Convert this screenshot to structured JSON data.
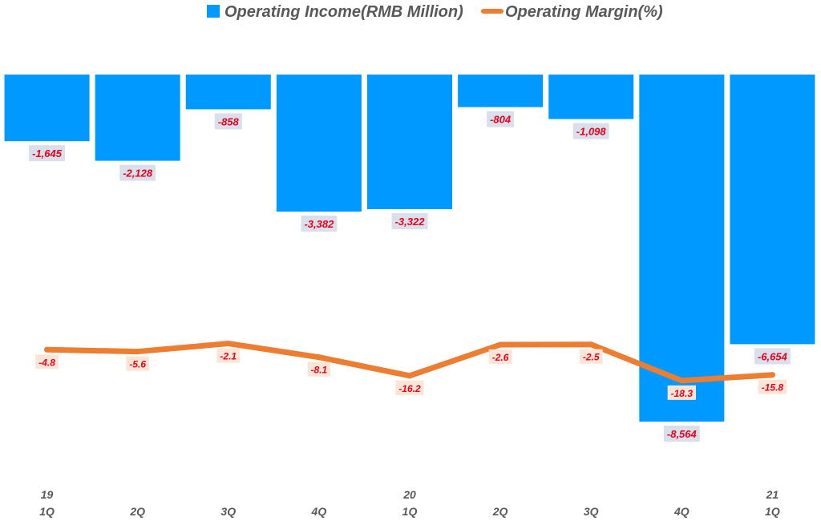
{
  "chart_data": {
    "type": "bar",
    "categories": [
      [
        "19",
        "1Q"
      ],
      [
        "",
        "2Q"
      ],
      [
        "",
        "3Q"
      ],
      [
        "",
        "4Q"
      ],
      [
        "20",
        "1Q"
      ],
      [
        "",
        "2Q"
      ],
      [
        "",
        "3Q"
      ],
      [
        "",
        "4Q"
      ],
      [
        "21",
        "1Q"
      ]
    ],
    "series": [
      {
        "name": "Operating Income(RMB Million)",
        "type": "bar",
        "color": "#0099ff",
        "values": [
          -1645,
          -2128,
          -858,
          -3382,
          -3322,
          -804,
          -1098,
          -8564,
          -6654
        ],
        "labels": [
          "-1,645",
          "-2,128",
          "-858",
          "-3,382",
          "-3,322",
          "-804",
          "-1,098",
          "-8,564",
          "-6,654"
        ]
      },
      {
        "name": "Operating Margin(%)",
        "type": "line",
        "color": "#ed7d31",
        "values": [
          -4.8,
          -5.6,
          -2.1,
          -8.1,
          -16.2,
          -2.6,
          -2.5,
          -18.3,
          -15.8
        ],
        "labels": [
          "-4.8",
          "-5.6",
          "-2.1",
          "-8.1",
          "-16.2",
          "-2.6",
          "-2.5",
          "-18.3",
          "-15.8"
        ]
      }
    ],
    "title": "",
    "xlabel": "",
    "ylabel": "",
    "ylim": [
      -8564,
      0
    ],
    "ylim_secondary": [
      -60,
      10
    ],
    "legend_position": "top-center",
    "grid": false
  }
}
